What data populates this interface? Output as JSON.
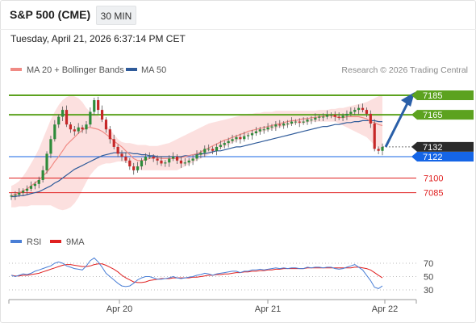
{
  "header": {
    "instrument": "S&P 500 (CME)",
    "timeframe": "30 MIN",
    "datetime": "Tuesday, April 21, 2026 6:37:14 PM CET"
  },
  "chart_data": [
    {
      "type": "candlestick",
      "legend": [
        {
          "label": "MA 20 + Bollinger Bands",
          "color": "#f08a84"
        },
        {
          "label": "MA 50",
          "color": "#2f5b9a"
        }
      ],
      "copyright": "Research © 2026 Trading Central",
      "x_ticks": [
        "Apr 20",
        "Apr 21",
        "Apr 22"
      ],
      "y_range": [
        7065,
        7195
      ],
      "levels": [
        {
          "value": 7185,
          "label": "7185",
          "kind": "resistance",
          "color": "#5ca21f"
        },
        {
          "value": 7165,
          "label": "7165",
          "kind": "resistance",
          "color": "#5ca21f"
        },
        {
          "value": 7132,
          "label": "7132",
          "kind": "last",
          "color": "#2b2b2b"
        },
        {
          "value": 7122,
          "label": "7122",
          "kind": "pivot",
          "color": "#1565e6"
        },
        {
          "value": 7100,
          "label": "7100",
          "kind": "support",
          "color": "#e02020"
        },
        {
          "value": 7085,
          "label": "7085",
          "kind": "support",
          "color": "#e02020"
        }
      ],
      "closes": [
        7082,
        7083,
        7085,
        7087,
        7089,
        7092,
        7094,
        7098,
        7108,
        7125,
        7140,
        7155,
        7163,
        7170,
        7155,
        7150,
        7148,
        7152,
        7150,
        7155,
        7168,
        7180,
        7170,
        7160,
        7150,
        7140,
        7132,
        7125,
        7122,
        7118,
        7112,
        7108,
        7112,
        7118,
        7122,
        7122,
        7120,
        7118,
        7115,
        7116,
        7120,
        7122,
        7118,
        7115,
        7116,
        7118,
        7120,
        7124,
        7126,
        7130,
        7130,
        7128,
        7132,
        7134,
        7136,
        7138,
        7140,
        7142,
        7140,
        7143,
        7144,
        7146,
        7148,
        7150,
        7150,
        7152,
        7153,
        7155,
        7154,
        7156,
        7156,
        7158,
        7158,
        7157,
        7158,
        7160,
        7160,
        7162,
        7163,
        7163,
        7165,
        7165,
        7163,
        7162,
        7164,
        7166,
        7168,
        7170,
        7172,
        7170,
        7166,
        7156,
        7130,
        7128,
        7132
      ],
      "ma20": [
        7082,
        7083,
        7085,
        7087,
        7089,
        7092,
        7095,
        7098,
        7102,
        7106,
        7111,
        7117,
        7122,
        7128,
        7134,
        7138,
        7142,
        7146,
        7149,
        7152,
        7152,
        7151,
        7150,
        7148,
        7145,
        7142,
        7138,
        7135,
        7132,
        7128,
        7124,
        7120,
        7118,
        7118,
        7119,
        7120,
        7121,
        7121,
        7120,
        7120,
        7120,
        7120,
        7120,
        7121,
        7122,
        7123,
        7124,
        7125,
        7127,
        7129,
        7131,
        7133,
        7135,
        7137,
        7139,
        7140,
        7142,
        7143,
        7145,
        7146,
        7148,
        7149,
        7150,
        7151,
        7152,
        7153,
        7154,
        7155,
        7156,
        7157,
        7158,
        7159,
        7159,
        7160,
        7161,
        7161,
        7162,
        7162,
        7163,
        7163,
        7164,
        7164,
        7163,
        7162,
        7162,
        7163,
        7163,
        7163,
        7163,
        7162,
        7161,
        7158,
        7157,
        7155,
        7154
      ],
      "ma50": [
        7081,
        7081,
        7082,
        7082,
        7083,
        7084,
        7085,
        7086,
        7088,
        7090,
        7092,
        7095,
        7097,
        7100,
        7103,
        7106,
        7109,
        7111,
        7113,
        7115,
        7117,
        7119,
        7121,
        7123,
        7124,
        7125,
        7126,
        7126,
        7126,
        7126,
        7126,
        7125,
        7125,
        7124,
        7124,
        7123,
        7123,
        7122,
        7122,
        7122,
        7122,
        7122,
        7122,
        7122,
        7123,
        7123,
        7124,
        7124,
        7125,
        7125,
        7126,
        7127,
        7128,
        7128,
        7129,
        7130,
        7131,
        7132,
        7132,
        7133,
        7134,
        7135,
        7136,
        7137,
        7138,
        7139,
        7140,
        7141,
        7142,
        7143,
        7144,
        7145,
        7146,
        7147,
        7148,
        7149,
        7150,
        7151,
        7152,
        7153,
        7153,
        7154,
        7155,
        7155,
        7156,
        7157,
        7157,
        7158,
        7158,
        7159,
        7159,
        7159,
        7159,
        7158,
        7158
      ],
      "bb_upper": [
        7092,
        7094,
        7097,
        7102,
        7108,
        7115,
        7122,
        7130,
        7140,
        7150,
        7160,
        7168,
        7175,
        7180,
        7183,
        7185,
        7184,
        7182,
        7178,
        7172,
        7168,
        7166,
        7164,
        7160,
        7155,
        7150,
        7145,
        7140,
        7137,
        7136,
        7136,
        7135,
        7134,
        7134,
        7134,
        7133,
        7133,
        7133,
        7134,
        7135,
        7136,
        7138,
        7140,
        7142,
        7144,
        7146,
        7148,
        7150,
        7152,
        7154,
        7156,
        7157,
        7158,
        7159,
        7160,
        7161,
        7162,
        7163,
        7164,
        7165,
        7166,
        7166,
        7167,
        7167,
        7168,
        7168,
        7168,
        7169,
        7169,
        7169,
        7169,
        7169,
        7169,
        7169,
        7169,
        7169,
        7169,
        7169,
        7170,
        7170,
        7170,
        7171,
        7171,
        7172,
        7172,
        7173,
        7174,
        7175,
        7176,
        7177,
        7178,
        7180,
        7182,
        7184,
        7186
      ],
      "bb_lower": [
        7070,
        7070,
        7071,
        7071,
        7071,
        7072,
        7072,
        7072,
        7072,
        7072,
        7072,
        7070,
        7068,
        7067,
        7068,
        7070,
        7074,
        7080,
        7088,
        7096,
        7103,
        7108,
        7112,
        7114,
        7115,
        7115,
        7116,
        7117,
        7117,
        7116,
        7114,
        7112,
        7110,
        7108,
        7108,
        7108,
        7108,
        7108,
        7108,
        7108,
        7108,
        7108,
        7108,
        7110,
        7112,
        7114,
        7116,
        7118,
        7120,
        7122,
        7124,
        7126,
        7128,
        7130,
        7132,
        7134,
        7136,
        7138,
        7140,
        7142,
        7144,
        7145,
        7146,
        7147,
        7148,
        7149,
        7150,
        7151,
        7152,
        7153,
        7154,
        7155,
        7156,
        7156,
        7156,
        7157,
        7158,
        7158,
        7158,
        7158,
        7158,
        7158,
        7158,
        7156,
        7154,
        7152,
        7150,
        7148,
        7146,
        7144,
        7142,
        7138,
        7134,
        7130,
        7128
      ],
      "projection": {
        "from": 7132,
        "to": 7185
      }
    },
    {
      "type": "line",
      "legend": [
        {
          "label": "RSI",
          "color": "#4a7fd6"
        },
        {
          "label": "9MA",
          "color": "#e02020"
        }
      ],
      "y_ticks": [
        70,
        50,
        30
      ],
      "rsi": [
        52,
        50,
        52,
        54,
        53,
        55,
        58,
        60,
        62,
        64,
        66,
        70,
        72,
        70,
        66,
        64,
        62,
        61,
        60,
        66,
        74,
        78,
        72,
        64,
        55,
        50,
        45,
        40,
        36,
        35,
        36,
        40,
        45,
        48,
        50,
        50,
        48,
        46,
        46,
        47,
        48,
        50,
        48,
        47,
        48,
        49,
        50,
        52,
        53,
        55,
        54,
        52,
        54,
        55,
        56,
        57,
        58,
        58,
        56,
        58,
        58,
        60,
        60,
        61,
        60,
        61,
        62,
        63,
        62,
        63,
        62,
        63,
        63,
        62,
        62,
        64,
        63,
        64,
        64,
        63,
        64,
        64,
        62,
        61,
        62,
        64,
        66,
        68,
        64,
        60,
        52,
        44,
        34,
        32,
        36
      ],
      "rsi_ma": [
        52,
        51,
        51,
        52,
        52,
        53,
        54,
        55,
        57,
        59,
        61,
        63,
        65,
        67,
        68,
        68,
        67,
        66,
        65,
        65,
        66,
        68,
        69,
        69,
        67,
        64,
        61,
        57,
        52,
        48,
        45,
        42,
        41,
        41,
        42,
        44,
        45,
        46,
        47,
        47,
        47,
        48,
        48,
        48,
        48,
        48,
        49,
        49,
        50,
        51,
        52,
        52,
        53,
        53,
        54,
        54,
        55,
        56,
        56,
        57,
        57,
        58,
        58,
        59,
        59,
        60,
        60,
        61,
        61,
        62,
        62,
        62,
        62,
        62,
        62,
        63,
        63,
        63,
        63,
        63,
        63,
        63,
        63,
        63,
        63,
        63,
        63,
        64,
        64,
        63,
        62,
        60,
        56,
        52,
        48
      ]
    }
  ]
}
